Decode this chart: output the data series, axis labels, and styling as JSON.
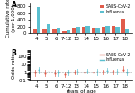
{
  "categories": [
    "4",
    "5",
    "6",
    "7-12",
    "13",
    "14",
    "15",
    "16",
    "17",
    "18"
  ],
  "sars_bars": [
    130,
    130,
    140,
    60,
    180,
    190,
    170,
    200,
    210,
    430
  ],
  "flu_bars": [
    780,
    260,
    160,
    110,
    200,
    210,
    170,
    230,
    200,
    150
  ],
  "sars_color": "#e05c4b",
  "flu_color": "#5bbfcf",
  "sars_label": "SARS-CoV-2",
  "flu_label": "Influenza",
  "ylabel_A": "Cumulative rate\n(per 1,000)",
  "ylabel_B": "Odds ratio",
  "xlabel": "Years of age",
  "ylim_A": [
    0,
    900
  ],
  "yticks_A": [
    0,
    200,
    400,
    600,
    800
  ],
  "panel_A_label": "A",
  "panel_B_label": "B",
  "sars_or": [
    1.0,
    0.9,
    0.85,
    0.6,
    1.1,
    1.15,
    1.05,
    1.3,
    1.25,
    2.5
  ],
  "sars_or_low": [
    0.4,
    0.35,
    0.35,
    0.3,
    0.6,
    0.65,
    0.55,
    0.7,
    0.65,
    1.2
  ],
  "sars_or_high": [
    2.5,
    2.2,
    2.0,
    1.2,
    2.0,
    2.1,
    1.9,
    2.4,
    2.3,
    5.5
  ],
  "flu_or": [
    2.0,
    1.5,
    1.0,
    1.0,
    1.4,
    1.5,
    1.2,
    1.7,
    1.4,
    1.1
  ],
  "flu_or_low": [
    0.8,
    0.6,
    0.4,
    0.5,
    0.7,
    0.75,
    0.55,
    0.8,
    0.65,
    0.45
  ],
  "flu_or_high": [
    5.0,
    3.8,
    2.5,
    2.0,
    2.8,
    3.0,
    2.6,
    3.5,
    3.0,
    2.6
  ],
  "or_ylim": [
    0.1,
    500
  ],
  "or_yticks": [
    0.1,
    1,
    10,
    100
  ],
  "background_color": "#ffffff",
  "fontsize": 4.5
}
